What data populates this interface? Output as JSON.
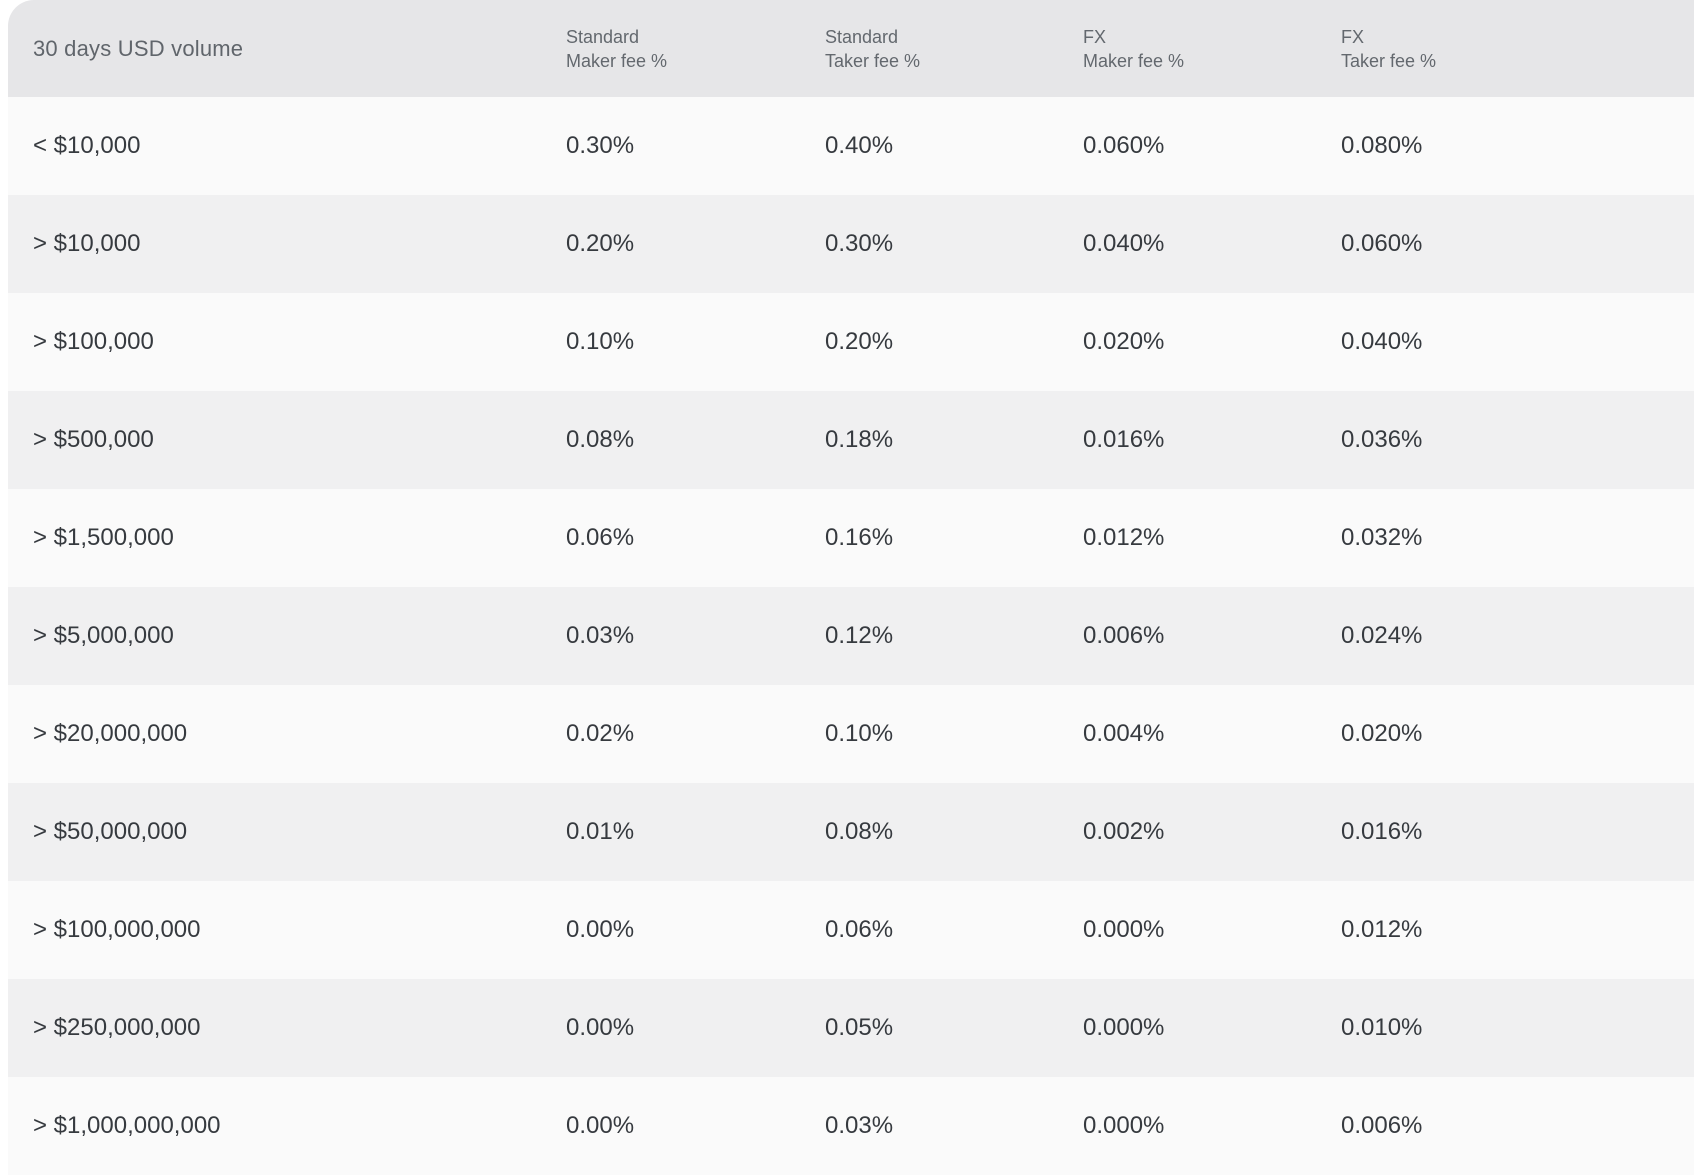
{
  "header": {
    "volume_label": "30 days USD volume",
    "fee_columns": [
      {
        "line1": "Standard",
        "line2": "Maker fee %"
      },
      {
        "line1": "Standard",
        "line2": "Taker fee %"
      },
      {
        "line1": "FX",
        "line2": "Maker fee %"
      },
      {
        "line1": "FX",
        "line2": "Taker fee %"
      }
    ]
  },
  "rows": [
    {
      "volume": "< $10,000",
      "standard_maker": "0.30%",
      "standard_taker": "0.40%",
      "fx_maker": "0.060%",
      "fx_taker": "0.080%"
    },
    {
      "volume": "> $10,000",
      "standard_maker": "0.20%",
      "standard_taker": "0.30%",
      "fx_maker": "0.040%",
      "fx_taker": "0.060%"
    },
    {
      "volume": "> $100,000",
      "standard_maker": "0.10%",
      "standard_taker": "0.20%",
      "fx_maker": "0.020%",
      "fx_taker": "0.040%"
    },
    {
      "volume": "> $500,000",
      "standard_maker": "0.08%",
      "standard_taker": "0.18%",
      "fx_maker": "0.016%",
      "fx_taker": "0.036%"
    },
    {
      "volume": "> $1,500,000",
      "standard_maker": "0.06%",
      "standard_taker": "0.16%",
      "fx_maker": "0.012%",
      "fx_taker": "0.032%"
    },
    {
      "volume": "> $5,000,000",
      "standard_maker": "0.03%",
      "standard_taker": "0.12%",
      "fx_maker": "0.006%",
      "fx_taker": "0.024%"
    },
    {
      "volume": "> $20,000,000",
      "standard_maker": "0.02%",
      "standard_taker": "0.10%",
      "fx_maker": "0.004%",
      "fx_taker": "0.020%"
    },
    {
      "volume": "> $50,000,000",
      "standard_maker": "0.01%",
      "standard_taker": "0.08%",
      "fx_maker": "0.002%",
      "fx_taker": "0.016%"
    },
    {
      "volume": "> $100,000,000",
      "standard_maker": "0.00%",
      "standard_taker": "0.06%",
      "fx_maker": "0.000%",
      "fx_taker": "0.012%"
    },
    {
      "volume": "> $250,000,000",
      "standard_maker": "0.00%",
      "standard_taker": "0.05%",
      "fx_maker": "0.000%",
      "fx_taker": "0.010%"
    },
    {
      "volume": "> $1,000,000,000",
      "standard_maker": "0.00%",
      "standard_taker": "0.03%",
      "fx_maker": "0.000%",
      "fx_taker": "0.006%"
    }
  ],
  "colors": {
    "header_bg": "#e6e6e8",
    "row_odd_bg": "#fafafa",
    "row_even_bg": "#f0f0f1",
    "header_text": "#63686e",
    "cell_text": "#363a3f"
  }
}
